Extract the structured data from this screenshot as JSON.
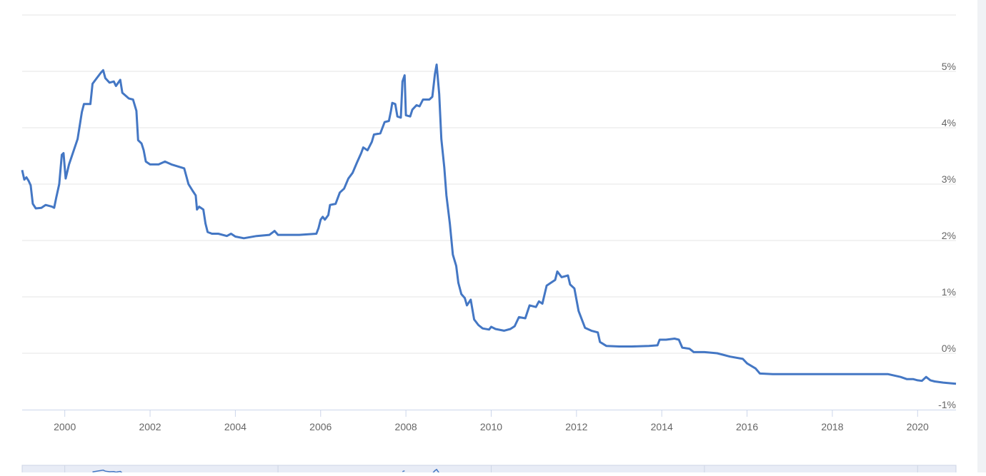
{
  "chart_data": {
    "type": "line",
    "x_ticks": [
      "2000",
      "2002",
      "2004",
      "2006",
      "2008",
      "2010",
      "2012",
      "2014",
      "2016",
      "2018",
      "2020"
    ],
    "y_ticks": [
      "5%",
      "4%",
      "3%",
      "2%",
      "1%",
      "0%",
      "-1%"
    ],
    "ylim": [
      -1,
      6
    ],
    "xlim": [
      1999.0,
      2020.9
    ],
    "grid": true,
    "series_color": "#4477c4",
    "series": [
      {
        "values": [
          [
            1999.0,
            3.25
          ],
          [
            1999.05,
            3.08
          ],
          [
            1999.1,
            3.12
          ],
          [
            1999.15,
            3.06
          ],
          [
            1999.2,
            2.98
          ],
          [
            1999.25,
            2.65
          ],
          [
            1999.32,
            2.57
          ],
          [
            1999.45,
            2.58
          ],
          [
            1999.55,
            2.63
          ],
          [
            1999.7,
            2.6
          ],
          [
            1999.75,
            2.58
          ],
          [
            1999.8,
            2.76
          ],
          [
            1999.87,
            3.0
          ],
          [
            1999.93,
            3.52
          ],
          [
            1999.97,
            3.55
          ],
          [
            2000.02,
            3.1
          ],
          [
            2000.1,
            3.35
          ],
          [
            2000.3,
            3.8
          ],
          [
            2000.4,
            4.28
          ],
          [
            2000.45,
            4.42
          ],
          [
            2000.6,
            4.42
          ],
          [
            2000.65,
            4.78
          ],
          [
            2000.75,
            4.88
          ],
          [
            2000.85,
            4.98
          ],
          [
            2000.9,
            5.02
          ],
          [
            2000.95,
            4.88
          ],
          [
            2001.05,
            4.8
          ],
          [
            2001.15,
            4.82
          ],
          [
            2001.2,
            4.74
          ],
          [
            2001.3,
            4.85
          ],
          [
            2001.35,
            4.62
          ],
          [
            2001.5,
            4.52
          ],
          [
            2001.6,
            4.5
          ],
          [
            2001.68,
            4.3
          ],
          [
            2001.72,
            3.78
          ],
          [
            2001.8,
            3.72
          ],
          [
            2001.85,
            3.6
          ],
          [
            2001.9,
            3.4
          ],
          [
            2002.0,
            3.35
          ],
          [
            2002.2,
            3.35
          ],
          [
            2002.35,
            3.4
          ],
          [
            2002.5,
            3.35
          ],
          [
            2002.8,
            3.28
          ],
          [
            2002.9,
            3.0
          ],
          [
            2003.0,
            2.88
          ],
          [
            2003.07,
            2.8
          ],
          [
            2003.1,
            2.55
          ],
          [
            2003.15,
            2.6
          ],
          [
            2003.25,
            2.55
          ],
          [
            2003.3,
            2.3
          ],
          [
            2003.35,
            2.15
          ],
          [
            2003.45,
            2.12
          ],
          [
            2003.6,
            2.12
          ],
          [
            2003.8,
            2.08
          ],
          [
            2003.9,
            2.12
          ],
          [
            2004.0,
            2.07
          ],
          [
            2004.2,
            2.04
          ],
          [
            2004.5,
            2.08
          ],
          [
            2004.8,
            2.1
          ],
          [
            2004.92,
            2.17
          ],
          [
            2005.0,
            2.1
          ],
          [
            2005.5,
            2.1
          ],
          [
            2005.9,
            2.12
          ],
          [
            2005.95,
            2.22
          ],
          [
            2006.0,
            2.37
          ],
          [
            2006.05,
            2.42
          ],
          [
            2006.1,
            2.37
          ],
          [
            2006.18,
            2.45
          ],
          [
            2006.22,
            2.63
          ],
          [
            2006.35,
            2.65
          ],
          [
            2006.45,
            2.85
          ],
          [
            2006.55,
            2.92
          ],
          [
            2006.65,
            3.1
          ],
          [
            2006.75,
            3.2
          ],
          [
            2006.85,
            3.38
          ],
          [
            2006.95,
            3.55
          ],
          [
            2007.0,
            3.65
          ],
          [
            2007.1,
            3.6
          ],
          [
            2007.2,
            3.75
          ],
          [
            2007.25,
            3.88
          ],
          [
            2007.4,
            3.9
          ],
          [
            2007.5,
            4.1
          ],
          [
            2007.6,
            4.12
          ],
          [
            2007.65,
            4.3
          ],
          [
            2007.68,
            4.44
          ],
          [
            2007.75,
            4.42
          ],
          [
            2007.8,
            4.2
          ],
          [
            2007.88,
            4.18
          ],
          [
            2007.92,
            4.82
          ],
          [
            2007.97,
            4.93
          ],
          [
            2008.0,
            4.22
          ],
          [
            2008.1,
            4.2
          ],
          [
            2008.15,
            4.32
          ],
          [
            2008.25,
            4.4
          ],
          [
            2008.32,
            4.38
          ],
          [
            2008.4,
            4.5
          ],
          [
            2008.55,
            4.5
          ],
          [
            2008.62,
            4.55
          ],
          [
            2008.68,
            4.95
          ],
          [
            2008.72,
            5.12
          ],
          [
            2008.78,
            4.6
          ],
          [
            2008.83,
            3.8
          ],
          [
            2008.9,
            3.3
          ],
          [
            2008.95,
            2.8
          ],
          [
            2009.03,
            2.3
          ],
          [
            2009.1,
            1.75
          ],
          [
            2009.18,
            1.55
          ],
          [
            2009.23,
            1.25
          ],
          [
            2009.3,
            1.05
          ],
          [
            2009.38,
            0.98
          ],
          [
            2009.43,
            0.85
          ],
          [
            2009.52,
            0.95
          ],
          [
            2009.6,
            0.6
          ],
          [
            2009.7,
            0.5
          ],
          [
            2009.8,
            0.44
          ],
          [
            2009.95,
            0.42
          ],
          [
            2010.0,
            0.47
          ],
          [
            2010.1,
            0.43
          ],
          [
            2010.3,
            0.4
          ],
          [
            2010.45,
            0.43
          ],
          [
            2010.55,
            0.48
          ],
          [
            2010.65,
            0.64
          ],
          [
            2010.8,
            0.62
          ],
          [
            2010.9,
            0.85
          ],
          [
            2011.05,
            0.82
          ],
          [
            2011.12,
            0.92
          ],
          [
            2011.2,
            0.88
          ],
          [
            2011.3,
            1.2
          ],
          [
            2011.4,
            1.25
          ],
          [
            2011.5,
            1.3
          ],
          [
            2011.55,
            1.45
          ],
          [
            2011.65,
            1.35
          ],
          [
            2011.8,
            1.38
          ],
          [
            2011.85,
            1.22
          ],
          [
            2011.95,
            1.15
          ],
          [
            2012.05,
            0.75
          ],
          [
            2012.2,
            0.45
          ],
          [
            2012.35,
            0.4
          ],
          [
            2012.5,
            0.37
          ],
          [
            2012.55,
            0.2
          ],
          [
            2012.7,
            0.13
          ],
          [
            2013.0,
            0.12
          ],
          [
            2013.3,
            0.12
          ],
          [
            2013.7,
            0.13
          ],
          [
            2013.9,
            0.14
          ],
          [
            2013.95,
            0.24
          ],
          [
            2014.1,
            0.24
          ],
          [
            2014.3,
            0.26
          ],
          [
            2014.4,
            0.24
          ],
          [
            2014.48,
            0.1
          ],
          [
            2014.65,
            0.08
          ],
          [
            2014.75,
            0.02
          ],
          [
            2015.0,
            0.02
          ],
          [
            2015.3,
            0.0
          ],
          [
            2015.6,
            -0.06
          ],
          [
            2015.9,
            -0.1
          ],
          [
            2016.0,
            -0.18
          ],
          [
            2016.2,
            -0.27
          ],
          [
            2016.3,
            -0.36
          ],
          [
            2016.6,
            -0.37
          ],
          [
            2017.0,
            -0.37
          ],
          [
            2018.0,
            -0.37
          ],
          [
            2019.0,
            -0.37
          ],
          [
            2019.3,
            -0.37
          ],
          [
            2019.6,
            -0.42
          ],
          [
            2019.75,
            -0.46
          ],
          [
            2019.9,
            -0.46
          ],
          [
            2020.0,
            -0.48
          ],
          [
            2020.1,
            -0.49
          ],
          [
            2020.2,
            -0.42
          ],
          [
            2020.3,
            -0.48
          ],
          [
            2020.4,
            -0.5
          ],
          [
            2020.6,
            -0.52
          ],
          [
            2020.9,
            -0.54
          ]
        ]
      }
    ]
  }
}
